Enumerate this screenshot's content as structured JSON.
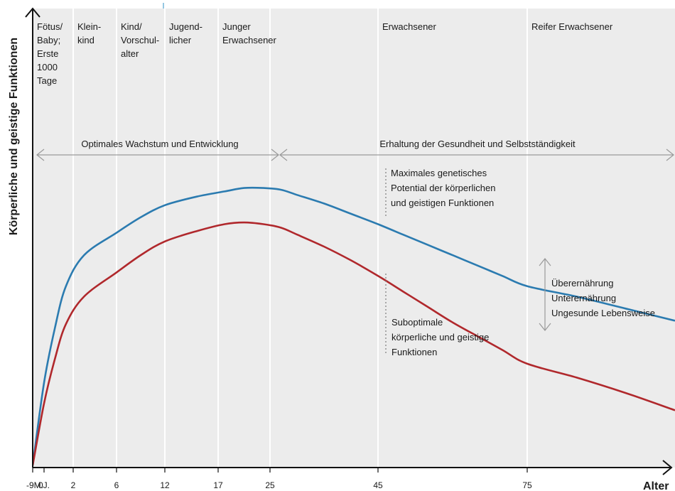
{
  "colors": {
    "background": "#ffffff",
    "plot_area": "#ececec",
    "gridline": "#ffffff",
    "axis": "#111111",
    "arrow": "#9a9a9a",
    "optimal_curve": "#2b7bb0",
    "suboptimal_curve": "#b0282c",
    "accent_line": "#2b8fc4"
  },
  "chart_data": {
    "type": "line",
    "title": "",
    "xlabel": "Alter",
    "ylabel": "Körperliche und geistige Funktionen",
    "xlim": [
      -9,
      90
    ],
    "ylim": [
      0,
      100
    ],
    "grid": true,
    "x_ticks": [
      {
        "label": "-9M.",
        "value": -9
      },
      {
        "label": "0J.",
        "value": -6
      },
      {
        "label": "2",
        "value": 2
      },
      {
        "label": "6",
        "value": 6
      },
      {
        "label": "12",
        "value": 12
      },
      {
        "label": "17",
        "value": 17
      },
      {
        "label": "25",
        "value": 25
      },
      {
        "label": "45",
        "value": 45
      },
      {
        "label": "75",
        "value": 75
      }
    ],
    "gridlines_x": [
      2,
      6,
      12,
      17,
      25,
      45,
      75
    ],
    "life_stages": [
      {
        "lines": [
          "Fötus/",
          "Baby;",
          "Erste",
          "1000",
          "Tage"
        ],
        "from": -9
      },
      {
        "lines": [
          "Klein-",
          "kind"
        ],
        "from": 2
      },
      {
        "lines": [
          "Kind/",
          "Vorschul-",
          "alter"
        ],
        "from": 6
      },
      {
        "lines": [
          "Jugend-",
          "licher"
        ],
        "from": 12
      },
      {
        "lines": [
          "Junger",
          "Erwachsener"
        ],
        "from": 17
      },
      {
        "lines": [
          "Erwachsener"
        ],
        "from": 45
      },
      {
        "lines": [
          "Reifer Erwachsener"
        ],
        "from": 75
      }
    ],
    "phases": [
      {
        "label": "Optimales Wachstum und Entwicklung",
        "from": -9,
        "to": 25
      },
      {
        "label": "Erhaltung der Gesundheit und Selbstständigkeit",
        "from": 25,
        "to": 90
      }
    ],
    "series": [
      {
        "key": "optimal",
        "x": [
          -9,
          -6,
          -3,
          0,
          3,
          6,
          9,
          12,
          15,
          18,
          21,
          24,
          27,
          30,
          35,
          40,
          45,
          50,
          55,
          60,
          65,
          70,
          75,
          80,
          85,
          90
        ],
        "y": [
          0,
          24,
          40,
          52,
          61,
          67.5,
          72,
          75.5,
          78,
          79.5,
          80.5,
          80.5,
          80,
          78.5,
          76,
          73,
          70,
          67,
          64,
          61,
          58,
          55,
          52,
          49,
          45.5,
          42
        ]
      },
      {
        "key": "suboptimal",
        "x": [
          -9,
          -6,
          -3,
          0,
          3,
          6,
          9,
          12,
          15,
          18,
          21,
          24,
          27,
          30,
          35,
          40,
          45,
          50,
          55,
          60,
          65,
          70,
          75,
          80,
          85,
          90
        ],
        "y": [
          0,
          18,
          31,
          41,
          49,
          56,
          61,
          65,
          68,
          70,
          70.5,
          70,
          69,
          67,
          63.5,
          59.5,
          55,
          50.5,
          46,
          41.5,
          37.5,
          33.5,
          29.5,
          25.5,
          21,
          16
        ]
      }
    ],
    "annotations": [
      {
        "key": "optimal_label",
        "lines": [
          "Maximales genetisches",
          "Potential der körperlichen",
          "und geistigen Funktionen"
        ]
      },
      {
        "key": "suboptimal_label",
        "lines": [
          "Suboptimale",
          "körperliche und geistige",
          "Funktionen"
        ]
      },
      {
        "key": "gap_label",
        "lines": [
          "Überernährung",
          "Unterernährung",
          "Ungesunde Lebensweise"
        ]
      }
    ]
  }
}
